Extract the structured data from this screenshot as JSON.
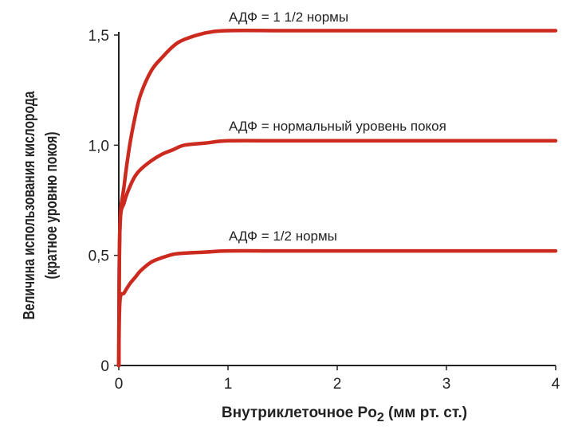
{
  "chart_data": {
    "type": "line",
    "xlabel": {
      "main": "Внутриклеточное Po",
      "sub": "2",
      "rest": " (мм рт. ст.)"
    },
    "ylabel": [
      "Величина использования кислорода",
      "(кратное уровню покоя)"
    ],
    "xlim": [
      0,
      4
    ],
    "ylim": [
      0,
      1.5
    ],
    "x_ticks": [
      0,
      1,
      2,
      3,
      4
    ],
    "x_tick_labels": [
      "0",
      "1",
      "2",
      "3",
      "4"
    ],
    "y_ticks": [
      0,
      0.5,
      1.0,
      1.5
    ],
    "y_tick_labels": [
      "0",
      "0,5",
      "1,0",
      "1,5"
    ],
    "grid": false,
    "line_color": "#cc2a1e",
    "series": [
      {
        "name": "АДФ = 1 1/2 нормы",
        "x": [
          0,
          0.01,
          0.05,
          0.1,
          0.15,
          0.2,
          0.3,
          0.4,
          0.5,
          0.6,
          0.8,
          1.0,
          1.5,
          2.0,
          3.0,
          4.0
        ],
        "values": [
          0,
          0.62,
          0.82,
          1.0,
          1.13,
          1.23,
          1.34,
          1.4,
          1.45,
          1.48,
          1.51,
          1.52,
          1.52,
          1.52,
          1.52,
          1.52
        ]
      },
      {
        "name": "АДФ = нормальный уровень покоя",
        "x": [
          0,
          0.01,
          0.05,
          0.1,
          0.15,
          0.2,
          0.3,
          0.4,
          0.5,
          0.6,
          0.8,
          1.0,
          1.5,
          2.0,
          3.0,
          4.0
        ],
        "values": [
          0,
          0.62,
          0.74,
          0.81,
          0.86,
          0.89,
          0.93,
          0.96,
          0.98,
          1.0,
          1.01,
          1.02,
          1.02,
          1.02,
          1.02,
          1.02
        ]
      },
      {
        "name": "АДФ = 1/2 нормы",
        "x": [
          0,
          0.01,
          0.05,
          0.1,
          0.15,
          0.2,
          0.3,
          0.4,
          0.5,
          0.6,
          0.8,
          1.0,
          1.5,
          2.0,
          3.0,
          4.0
        ],
        "values": [
          0,
          0.29,
          0.33,
          0.37,
          0.4,
          0.43,
          0.47,
          0.49,
          0.505,
          0.51,
          0.515,
          0.52,
          0.52,
          0.52,
          0.52,
          0.52
        ]
      }
    ]
  }
}
